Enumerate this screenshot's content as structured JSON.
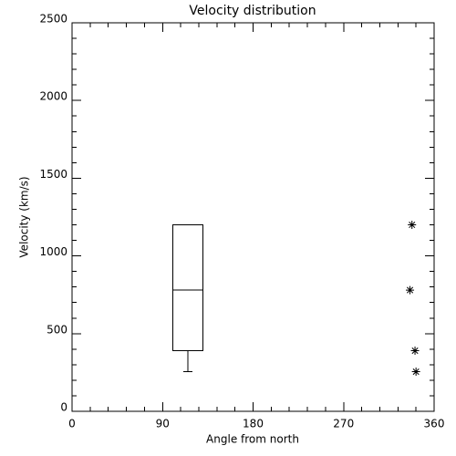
{
  "chart_data": {
    "type": "box",
    "title": "Velocity distribution",
    "x_label": "Angle from north",
    "y_label": "Velocity (km/s)",
    "xlim": [
      0,
      360
    ],
    "xticks": [
      0,
      90,
      180,
      270,
      360
    ],
    "xminorticks": [
      18,
      36,
      54,
      72,
      108,
      126,
      144,
      162,
      198,
      216,
      234,
      252,
      288,
      306,
      324,
      342
    ],
    "ylim": [
      0,
      2500
    ],
    "yticks": [
      0,
      500,
      1000,
      1500,
      2000,
      2500
    ],
    "yminorticks": [
      100,
      200,
      300,
      400,
      600,
      700,
      800,
      900,
      1100,
      1200,
      1300,
      1400,
      1600,
      1700,
      1800,
      1900,
      2100,
      2200,
      2300,
      2400
    ],
    "boxes": [
      {
        "x": 115,
        "whisker_low": 255,
        "q1": 390,
        "median": 780,
        "q3": 1200,
        "whisker_high": 1200
      }
    ],
    "points": {
      "x": [
        338,
        336,
        341,
        342
      ],
      "y": [
        1200,
        780,
        390,
        255
      ]
    },
    "color": "#000000"
  }
}
